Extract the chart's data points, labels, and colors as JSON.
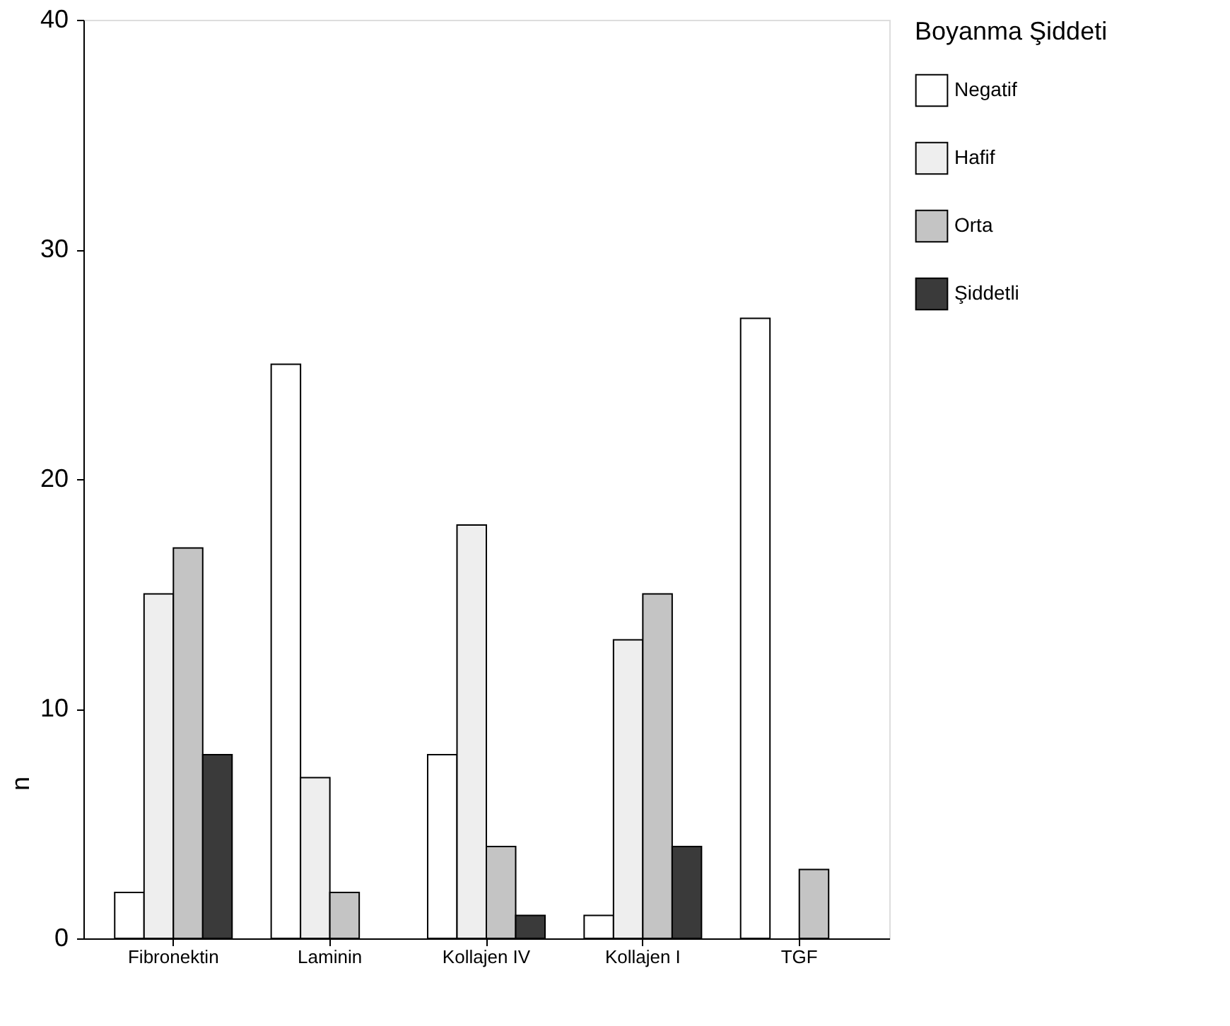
{
  "chart_data": {
    "type": "bar",
    "ylabel": "n",
    "legend_title": "Boyanma Şiddeti",
    "categories": [
      "Fibronektin",
      "Laminin",
      "Kollajen IV",
      "Kollajen I",
      "TGF"
    ],
    "series": [
      {
        "name": "Negatif",
        "color": "#ffffff",
        "values": [
          2,
          25,
          8,
          1,
          27
        ]
      },
      {
        "name": "Hafif",
        "color": "#eeeeee",
        "values": [
          15,
          7,
          18,
          13,
          null
        ]
      },
      {
        "name": "Orta",
        "color": "#c4c4c4",
        "values": [
          17,
          2,
          4,
          15,
          3
        ]
      },
      {
        "name": "Şiddetli",
        "color": "#3a3a3a",
        "values": [
          8,
          null,
          1,
          4,
          null
        ]
      }
    ],
    "ylim": [
      0,
      40
    ],
    "yticks": [
      0,
      10,
      20,
      30,
      40
    ],
    "grid": false,
    "legend": "right"
  }
}
